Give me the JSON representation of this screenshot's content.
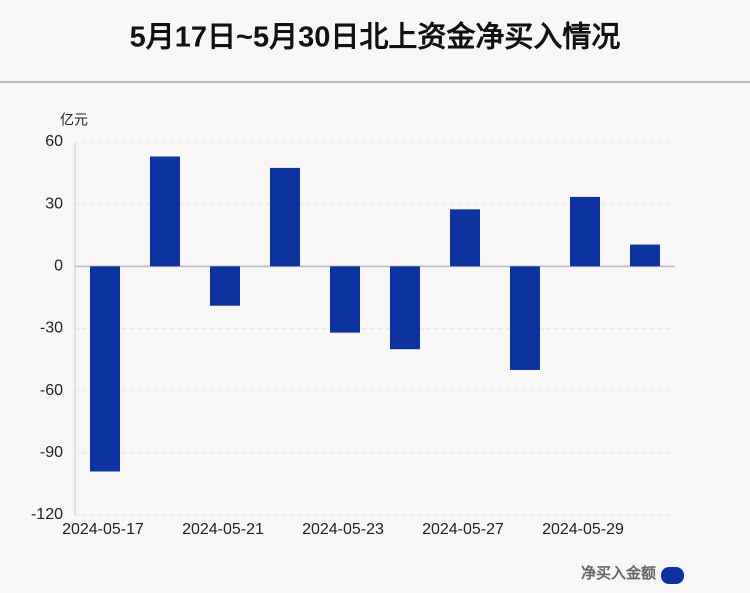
{
  "chart_data": {
    "type": "bar",
    "title": "5月17日~5月30日北上资金净买入情况",
    "y_label": "亿元",
    "categories": [
      "2024-05-17",
      null,
      "2024-05-21",
      null,
      "2024-05-23",
      null,
      "2024-05-27",
      null,
      "2024-05-29",
      null
    ],
    "series": [
      {
        "name": "净买入金额",
        "color": "#0d33a0",
        "values": [
          -99,
          53,
          -19,
          47.5,
          -32,
          -40,
          27.5,
          -50,
          33.5,
          10.5
        ]
      }
    ],
    "ylim": [
      -120,
      60
    ],
    "yticks": [
      -120,
      -90,
      -60,
      -30,
      0,
      30,
      60
    ],
    "grid": true,
    "legend": "bottom-right"
  }
}
